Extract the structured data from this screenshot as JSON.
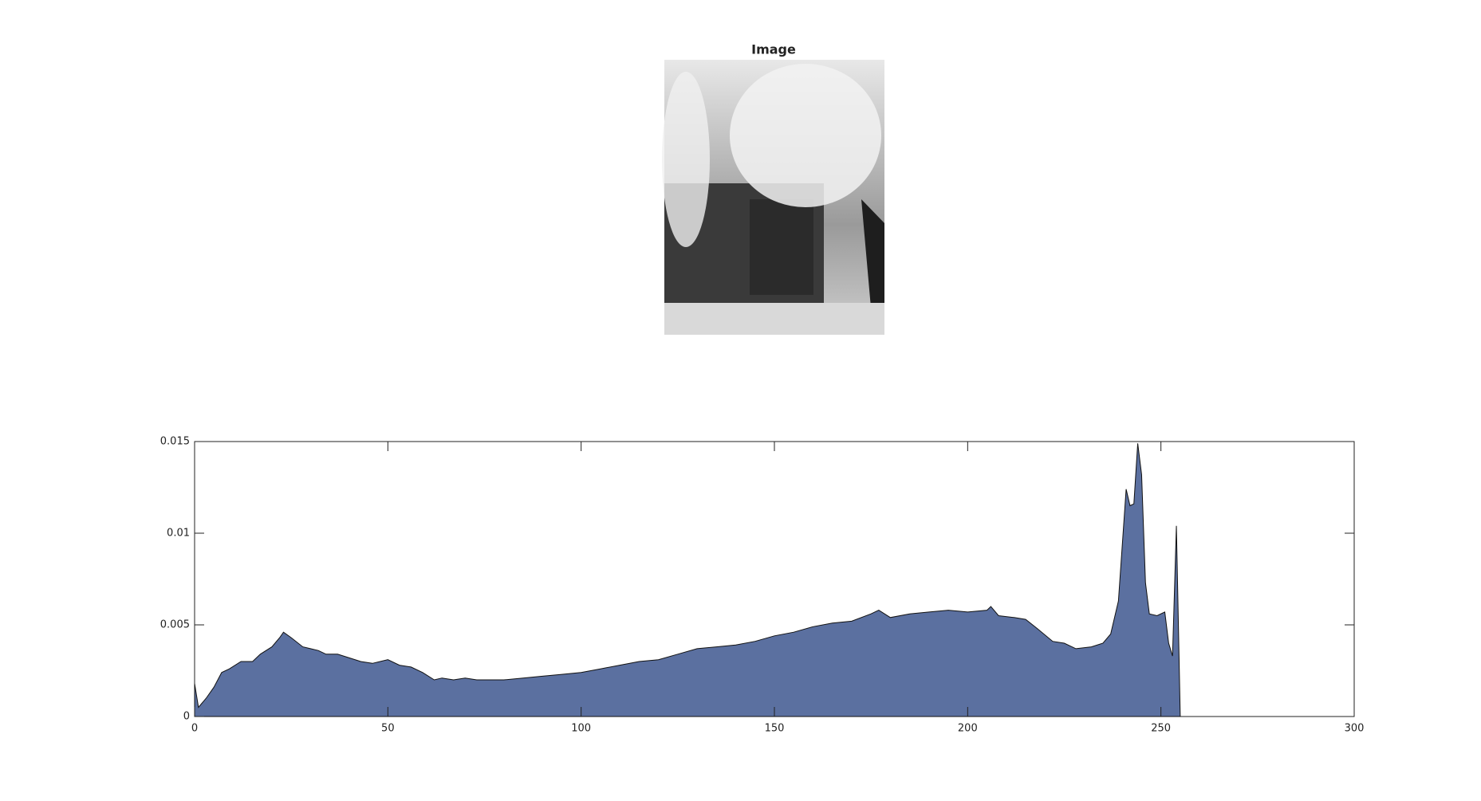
{
  "image_panel": {
    "title": "Image"
  },
  "chart_data": {
    "type": "area",
    "x": [
      0,
      1,
      3,
      5,
      7,
      9,
      12,
      15,
      17,
      20,
      22,
      23,
      25,
      28,
      30,
      32,
      34,
      37,
      40,
      43,
      46,
      48,
      50,
      53,
      56,
      59,
      62,
      64,
      67,
      70,
      73,
      76,
      80,
      85,
      90,
      95,
      100,
      105,
      110,
      115,
      120,
      125,
      130,
      135,
      140,
      145,
      150,
      155,
      160,
      165,
      170,
      175,
      177,
      180,
      185,
      190,
      195,
      200,
      205,
      206,
      208,
      212,
      215,
      218,
      222,
      225,
      228,
      232,
      235,
      237,
      239,
      241,
      242,
      243,
      244,
      245,
      246,
      247,
      249,
      251,
      252,
      253,
      254,
      255
    ],
    "values": [
      0.0018,
      0.0005,
      0.001,
      0.0016,
      0.0024,
      0.0026,
      0.003,
      0.003,
      0.0034,
      0.0038,
      0.0043,
      0.0046,
      0.0043,
      0.0038,
      0.0037,
      0.0036,
      0.0034,
      0.0034,
      0.0032,
      0.003,
      0.0029,
      0.003,
      0.0031,
      0.0028,
      0.0027,
      0.0024,
      0.002,
      0.0021,
      0.002,
      0.0021,
      0.002,
      0.002,
      0.002,
      0.0021,
      0.0022,
      0.0023,
      0.0024,
      0.0026,
      0.0028,
      0.003,
      0.0031,
      0.0034,
      0.0037,
      0.0038,
      0.0039,
      0.0041,
      0.0044,
      0.0046,
      0.0049,
      0.0051,
      0.0052,
      0.0056,
      0.0058,
      0.0054,
      0.0056,
      0.0057,
      0.0058,
      0.0057,
      0.0058,
      0.006,
      0.0055,
      0.0054,
      0.0053,
      0.0048,
      0.0041,
      0.004,
      0.0037,
      0.0038,
      0.004,
      0.0045,
      0.0063,
      0.0124,
      0.0115,
      0.0116,
      0.0149,
      0.0132,
      0.0073,
      0.0056,
      0.0055,
      0.0057,
      0.004,
      0.0033,
      0.0104,
      0
    ],
    "color": "#5b70a0",
    "xlim": [
      0,
      300
    ],
    "xticks": [
      0,
      50,
      100,
      150,
      200,
      250,
      300
    ],
    "ylim": [
      0,
      0.015
    ],
    "yticks": [
      0,
      0.005,
      0.01,
      0.015
    ]
  }
}
